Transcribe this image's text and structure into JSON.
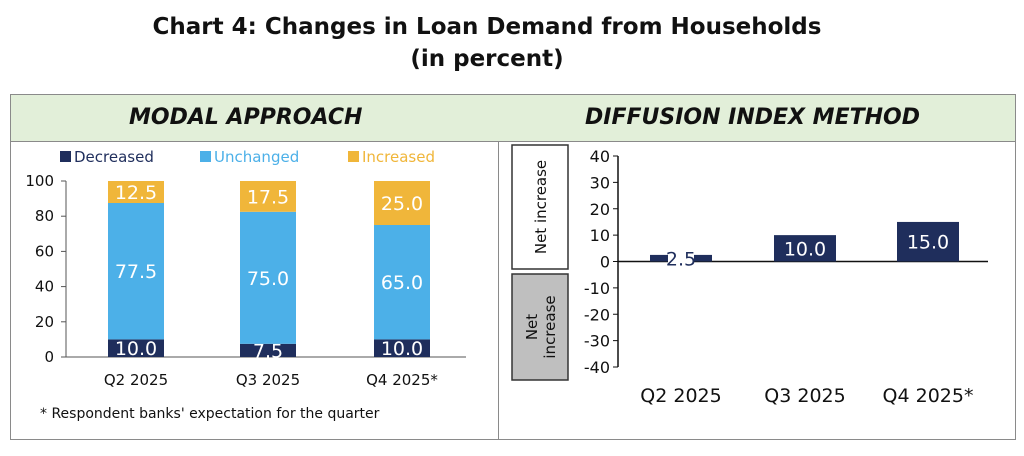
{
  "title": {
    "line1": "Chart 4: Changes in Loan Demand from Households",
    "line2": "(in percent)"
  },
  "panels": {
    "left_header": "MODAL APPROACH",
    "right_header": "DIFFUSION INDEX METHOD"
  },
  "footnote": "* Respondent banks' expectation for the quarter",
  "colors": {
    "decreased": "#1f2e5c",
    "unchanged": "#4cb0e8",
    "increased": "#f0b63a",
    "net_bar": "#1f2e5c",
    "header_bg": "#e2efd9",
    "label_box": "#bfbfbf"
  },
  "chart_data": [
    {
      "type": "bar",
      "stacked": true,
      "title": "MODAL APPROACH",
      "categories": [
        "Q2 2025",
        "Q3 2025",
        "Q4 2025*"
      ],
      "series": [
        {
          "name": "Decreased",
          "values": [
            10.0,
            7.5,
            10.0
          ],
          "labels": [
            "10.0",
            "7.5",
            "10.0"
          ]
        },
        {
          "name": "Unchanged",
          "values": [
            77.5,
            75.0,
            65.0
          ],
          "labels": [
            "77.5",
            "75.0",
            "65.0"
          ]
        },
        {
          "name": "Increased",
          "values": [
            12.5,
            17.5,
            25.0
          ],
          "labels": [
            "12.5",
            "17.5",
            "25.0"
          ]
        }
      ],
      "ylim": [
        0,
        100
      ],
      "yticks": [
        "0",
        "20",
        "40",
        "60",
        "80",
        "100"
      ],
      "legend": "top"
    },
    {
      "type": "bar",
      "title": "DIFFUSION INDEX METHOD",
      "categories": [
        "Q2 2025",
        "Q3 2025",
        "Q4 2025*"
      ],
      "values": [
        2.5,
        10.0,
        15.0
      ],
      "labels": [
        "2.5",
        "10.0",
        "15.0"
      ],
      "ylim": [
        -40,
        40
      ],
      "yticks": [
        "40",
        "30",
        "20",
        "10",
        "0",
        "-10",
        "-20",
        "-30",
        "-40"
      ],
      "annotations": [
        "Net increase",
        "Net increase"
      ]
    }
  ]
}
